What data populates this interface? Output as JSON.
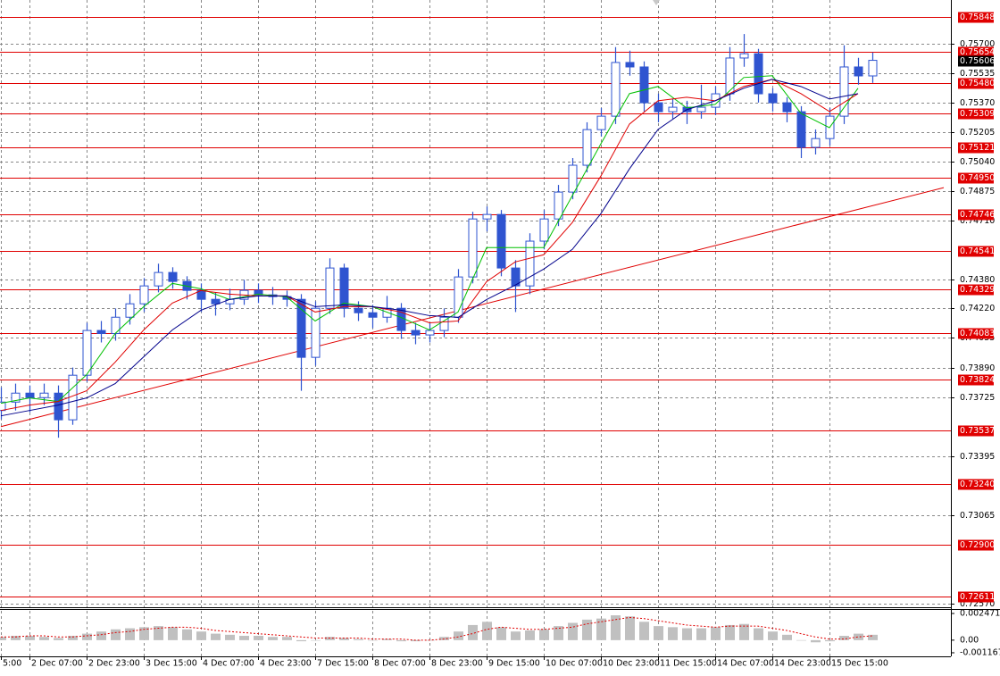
{
  "chart_data": {
    "type": "candlestick",
    "categories": [
      "5:00",
      null,
      "2 Dec 07:00",
      null,
      null,
      null,
      "2 Dec 23:00",
      null,
      null,
      null,
      "3 Dec 15:00",
      null,
      null,
      null,
      "4 Dec 07:00",
      null,
      null,
      null,
      "4 Dec 23:00",
      null,
      null,
      null,
      "7 Dec 15:00",
      null,
      null,
      null,
      "8 Dec 07:00",
      null,
      null,
      null,
      "8 Dec 23:00",
      null,
      null,
      null,
      "9 Dec 15:00",
      null,
      null,
      null,
      "10 Dec 07:00",
      null,
      null,
      null,
      "10 Dec 23:00",
      null,
      null,
      null,
      "11 Dec 15:00",
      null,
      null,
      null,
      "14 Dec 07:00",
      null,
      null,
      null,
      "14 Dec 23:00",
      null,
      null,
      null,
      "15 Dec 15:00",
      null,
      null,
      null
    ],
    "ohlc": [
      [
        0.7365,
        0.7378,
        0.736,
        0.73697
      ],
      [
        0.73697,
        0.738,
        0.7365,
        0.73747
      ],
      [
        0.73747,
        0.7379,
        0.7364,
        0.73722
      ],
      [
        0.73722,
        0.738,
        0.7368,
        0.73747
      ],
      [
        0.73747,
        0.7379,
        0.73498,
        0.73598
      ],
      [
        0.73598,
        0.7389,
        0.7357,
        0.73847
      ],
      [
        0.73847,
        0.7414,
        0.7381,
        0.74097
      ],
      [
        0.74097,
        0.7415,
        0.7403,
        0.7408
      ],
      [
        0.7408,
        0.7422,
        0.7404,
        0.74171
      ],
      [
        0.74171,
        0.743,
        0.7413,
        0.74246
      ],
      [
        0.74246,
        0.7439,
        0.742,
        0.74346
      ],
      [
        0.74346,
        0.7447,
        0.7431,
        0.74421
      ],
      [
        0.74421,
        0.7445,
        0.7433,
        0.74371
      ],
      [
        0.74371,
        0.744,
        0.7427,
        0.74321
      ],
      [
        0.74321,
        0.7436,
        0.742,
        0.74271
      ],
      [
        0.74271,
        0.7431,
        0.7418,
        0.74246
      ],
      [
        0.74246,
        0.7433,
        0.7421,
        0.74271
      ],
      [
        0.74271,
        0.7438,
        0.7424,
        0.74321
      ],
      [
        0.74321,
        0.7436,
        0.7425,
        0.74296
      ],
      [
        0.74296,
        0.7434,
        0.7424,
        0.74286
      ],
      [
        0.74286,
        0.7432,
        0.7423,
        0.74271
      ],
      [
        0.74271,
        0.743,
        0.7376,
        0.73947
      ],
      [
        0.73947,
        0.7426,
        0.739,
        0.74221
      ],
      [
        0.74221,
        0.745,
        0.7419,
        0.74446
      ],
      [
        0.74446,
        0.7447,
        0.7417,
        0.74221
      ],
      [
        0.74221,
        0.7426,
        0.7415,
        0.74196
      ],
      [
        0.74196,
        0.7424,
        0.7411,
        0.74171
      ],
      [
        0.74171,
        0.7429,
        0.7414,
        0.74221
      ],
      [
        0.74221,
        0.7425,
        0.7405,
        0.74097
      ],
      [
        0.74097,
        0.7414,
        0.7402,
        0.74072
      ],
      [
        0.74072,
        0.7414,
        0.7403,
        0.74097
      ],
      [
        0.74097,
        0.7422,
        0.7406,
        0.74171
      ],
      [
        0.74171,
        0.7444,
        0.7414,
        0.74396
      ],
      [
        0.74396,
        0.7476,
        0.7436,
        0.7472
      ],
      [
        0.7472,
        0.7479,
        0.7465,
        0.74745
      ],
      [
        0.74745,
        0.7477,
        0.744,
        0.74446
      ],
      [
        0.74446,
        0.7449,
        0.742,
        0.74346
      ],
      [
        0.74346,
        0.7464,
        0.743,
        0.74596
      ],
      [
        0.74596,
        0.7477,
        0.7455,
        0.7472
      ],
      [
        0.7472,
        0.7491,
        0.7468,
        0.7487
      ],
      [
        0.7487,
        0.7506,
        0.7483,
        0.7502
      ],
      [
        0.7502,
        0.7526,
        0.7498,
        0.75219
      ],
      [
        0.75219,
        0.7534,
        0.7518,
        0.75294
      ],
      [
        0.75294,
        0.7568,
        0.7525,
        0.75594
      ],
      [
        0.75594,
        0.7566,
        0.7552,
        0.75569
      ],
      [
        0.75569,
        0.756,
        0.7532,
        0.75369
      ],
      [
        0.75369,
        0.7542,
        0.7526,
        0.75319
      ],
      [
        0.75319,
        0.7539,
        0.7528,
        0.75344
      ],
      [
        0.75344,
        0.7538,
        0.7525,
        0.75319
      ],
      [
        0.75319,
        0.7547,
        0.7528,
        0.75344
      ],
      [
        0.75344,
        0.7546,
        0.753,
        0.75419
      ],
      [
        0.75419,
        0.7568,
        0.7538,
        0.75619
      ],
      [
        0.75619,
        0.75753,
        0.7557,
        0.75643
      ],
      [
        0.75643,
        0.7567,
        0.7537,
        0.75419
      ],
      [
        0.75419,
        0.7545,
        0.7532,
        0.75369
      ],
      [
        0.75369,
        0.754,
        0.7526,
        0.75319
      ],
      [
        0.75319,
        0.7535,
        0.7506,
        0.7512
      ],
      [
        0.7512,
        0.7522,
        0.7508,
        0.75169
      ],
      [
        0.75169,
        0.7534,
        0.7513,
        0.75294
      ],
      [
        0.75294,
        0.7569,
        0.7525,
        0.75569
      ],
      [
        0.75569,
        0.7562,
        0.7547,
        0.75519
      ],
      [
        0.75519,
        0.7565,
        0.7548,
        0.75606
      ]
    ],
    "color": "#2f54d0",
    "ylim": [
      0.72551,
      0.75943
    ],
    "yticks": [
      {
        "value": 0.757,
        "label": "0.75700"
      },
      0.75535,
      {
        "value": 0.7537,
        "label": "0.75370"
      },
      0.75205,
      {
        "value": 0.7504,
        "label": "0.75040"
      },
      0.74875,
      {
        "value": 0.7471,
        "label": "0.74710"
      },
      {
        "value": 0.7438,
        "label": "0.74380"
      },
      {
        "value": 0.7422,
        "label": "0.74220"
      },
      0.74055,
      {
        "value": 0.7389,
        "label": "0.73890"
      },
      0.73725,
      0.73395,
      0.73065,
      {
        "value": 0.7257,
        "label": "0.72570"
      }
    ],
    "grid": true,
    "levels": [
      0.75848,
      0.75654,
      {
        "value": 0.7548,
        "label": "0.75480"
      },
      0.75309,
      0.75121,
      {
        "value": 0.7495,
        "label": "0.74950"
      },
      0.74746,
      0.74541,
      0.74329,
      0.74083,
      0.73824,
      0.73537,
      {
        "value": 0.7324,
        "label": "0.73240"
      },
      {
        "value": 0.729,
        "label": "0.72900"
      },
      0.72611
    ],
    "level_color": "#e00000",
    "current_price": 0.75606,
    "trendline": {
      "x": [
        0,
        66
      ],
      "values": [
        0.7356,
        0.74895
      ],
      "color": "#e00000"
    },
    "moving_averages": {
      "x": [
        0,
        2,
        4,
        6,
        8,
        10,
        12,
        14,
        16,
        18,
        20,
        22,
        24,
        26,
        28,
        30,
        32,
        34,
        36,
        38,
        40,
        42,
        44,
        46,
        48,
        50,
        52,
        54,
        56,
        58,
        60
      ],
      "series": [
        {
          "color": "#00c000",
          "values": [
            0.7369,
            0.7372,
            0.737,
            0.7385,
            0.7408,
            0.7423,
            0.7436,
            0.7433,
            0.7427,
            0.743,
            0.74285,
            0.7415,
            0.7425,
            0.7423,
            0.7417,
            0.741,
            0.742,
            0.7456,
            0.7456,
            0.7456,
            0.7485,
            0.7514,
            0.7542,
            0.7546,
            0.7534,
            0.7536,
            0.7551,
            0.7552,
            0.7531,
            0.7523,
            0.7545
          ]
        },
        {
          "color": "#e00000",
          "values": [
            0.7365,
            0.7368,
            0.737,
            0.7376,
            0.7392,
            0.741,
            0.7425,
            0.7432,
            0.743,
            0.7429,
            0.7429,
            0.742,
            0.7423,
            0.7423,
            0.742,
            0.7414,
            0.7415,
            0.7437,
            0.7448,
            0.7452,
            0.747,
            0.7496,
            0.7525,
            0.7538,
            0.754,
            0.7538,
            0.7546,
            0.755,
            0.7542,
            0.7532,
            0.7542
          ]
        },
        {
          "color": "#00008b",
          "values": [
            0.7362,
            0.7365,
            0.7368,
            0.7372,
            0.738,
            0.7395,
            0.741,
            0.7421,
            0.7427,
            0.7429,
            0.7429,
            0.7423,
            0.7424,
            0.7423,
            0.7421,
            0.7418,
            0.7417,
            0.7427,
            0.7435,
            0.7444,
            0.7455,
            0.7475,
            0.75,
            0.7522,
            0.7533,
            0.7538,
            0.7545,
            0.755,
            0.7546,
            0.7539,
            0.7542
          ]
        }
      ]
    },
    "indicator": {
      "type": "histogram",
      "color": "#c0c0c0",
      "values": [
        0.0003,
        0.0004,
        0.0004,
        0.0003,
        0.0002,
        0.0004,
        0.0006,
        0.0008,
        0.001,
        0.0011,
        0.0012,
        0.0013,
        0.0012,
        0.001,
        0.0008,
        0.0006,
        0.0005,
        0.0004,
        0.0004,
        0.0003,
        0.0003,
        -0.0001,
        0,
        0.0003,
        0.0002,
        0.0001,
        0,
        0.0001,
        -0.0001,
        -0.0001,
        0,
        0.0003,
        0.0008,
        0.0014,
        0.0017,
        0.0012,
        0.0008,
        0.0009,
        0.001,
        0.0013,
        0.0016,
        0.0019,
        0.002,
        0.0023,
        0.0022,
        0.0017,
        0.0013,
        0.0012,
        0.0011,
        0.0011,
        0.0012,
        0.0014,
        0.0015,
        0.0011,
        0.0008,
        0.0005,
        0,
        -0.0002,
        -0.0001,
        0.0004,
        0.0006,
        0.0005
      ],
      "signal": {
        "color": "#e00000",
        "values": [
          0.0003,
          0.0003,
          0.0004,
          0.0004,
          0.0003,
          0.0003,
          0.0004,
          0.0005,
          0.0007,
          0.0008,
          0.001,
          0.0011,
          0.0012,
          0.0012,
          0.0011,
          0.0009,
          0.0008,
          0.0007,
          0.0006,
          0.0005,
          0.0004,
          0.0003,
          0.0002,
          0.0002,
          0.0002,
          0.0002,
          0.0001,
          0.0001,
          0.0001,
          0,
          0,
          0.0001,
          0.0003,
          0.0006,
          0.001,
          0.0012,
          0.0011,
          0.001,
          0.001,
          0.0011,
          0.0012,
          0.0015,
          0.0017,
          0.0019,
          0.0021,
          0.002,
          0.0018,
          0.0016,
          0.0014,
          0.0013,
          0.0012,
          0.0013,
          0.0013,
          0.0013,
          0.0011,
          0.0009,
          0.0006,
          0.0003,
          0.0001,
          0.0001,
          0.0003,
          0.0004
        ]
      },
      "ylim": [
        -0.0015,
        0.0028
      ],
      "yticks": [
        0.002471,
        {
          "value": 0,
          "label": "0.00"
        },
        -0.001167
      ]
    }
  }
}
